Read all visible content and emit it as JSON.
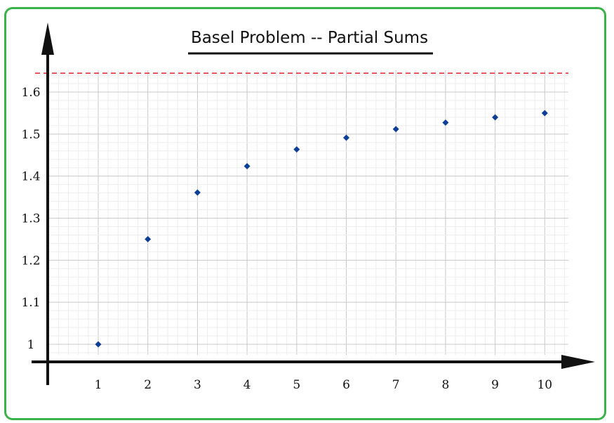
{
  "chart_data": {
    "type": "scatter",
    "title": "Basel Problem -- Partial Sums",
    "xlabel": "",
    "ylabel": "",
    "x": [
      1,
      2,
      3,
      4,
      5,
      6,
      7,
      8,
      9,
      10
    ],
    "values": [
      1.0,
      1.25,
      1.3611,
      1.4236,
      1.4636,
      1.4914,
      1.5118,
      1.5274,
      1.5398,
      1.5498
    ],
    "x_tick_labels": [
      "1",
      "2",
      "3",
      "4",
      "5",
      "6",
      "7",
      "8",
      "9",
      "10"
    ],
    "y_ticks": [
      1,
      1.1,
      1.2,
      1.3,
      1.4,
      1.5,
      1.6
    ],
    "y_tick_labels": [
      "1",
      "1.1",
      "1.2",
      "1.3",
      "1.4",
      "1.5",
      "1.6"
    ],
    "reference_line": {
      "value": 1.6449,
      "style": "dashed",
      "color": "#e8333a"
    },
    "grid": true,
    "marker_color": "#0d3f96",
    "frame_color": "#3cb34a"
  }
}
